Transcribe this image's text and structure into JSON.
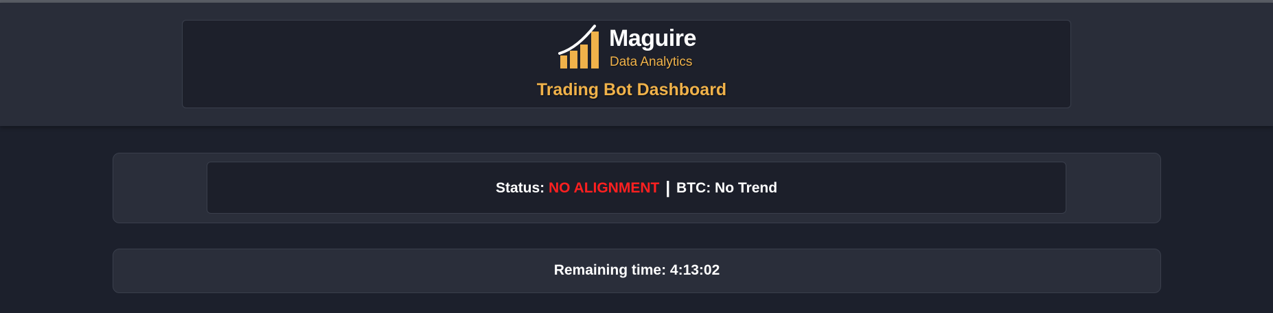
{
  "header": {
    "brand_name": "Maguire",
    "brand_sub": "Data Analytics",
    "dashboard_title": "Trading Bot Dashboard",
    "logo_icon": "bar-chart-growth-icon"
  },
  "status": {
    "label": "Status:",
    "value": "NO ALIGNMENT",
    "separator": "|",
    "btc_label": "BTC:",
    "btc_value": "No Trend"
  },
  "timer": {
    "label": "Remaining time:",
    "value": "4:13:02"
  },
  "colors": {
    "accent": "#f0b24a",
    "alert": "#ff2020",
    "background": "#1c202c",
    "header_band": "#292d39",
    "card": "#2a2e3a"
  }
}
